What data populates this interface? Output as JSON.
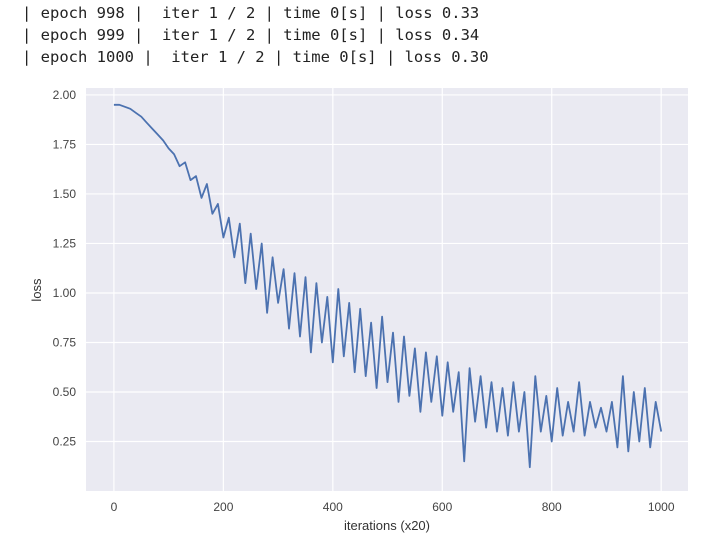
{
  "log_lines": [
    "| epoch 998 |  iter 1 / 2 | time 0[s] | loss 0.33",
    "| epoch 999 |  iter 1 / 2 | time 0[s] | loss 0.34",
    "| epoch 1000 |  iter 1 / 2 | time 0[s] | loss 0.30"
  ],
  "chart_data": {
    "type": "line",
    "title": "",
    "xlabel": "iterations (x20)",
    "ylabel": "loss",
    "xlim": [
      -51,
      1049
    ],
    "ylim": [
      0.0,
      2.035
    ],
    "xticks": [
      0,
      200,
      400,
      600,
      800,
      1000
    ],
    "xtick_labels": [
      "0",
      "200",
      "400",
      "600",
      "800",
      "1000"
    ],
    "yticks": [
      0.25,
      0.5,
      0.75,
      1.0,
      1.25,
      1.5,
      1.75,
      2.0
    ],
    "ytick_labels": [
      "0.25",
      "0.50",
      "0.75",
      "1.00",
      "1.25",
      "1.50",
      "1.75",
      "2.00"
    ],
    "grid": true,
    "background": "#eaeaf2",
    "line_color": "#4c72b0",
    "series": [
      {
        "x": [
          0,
          10,
          20,
          30,
          40,
          50,
          60,
          70,
          80,
          90,
          100,
          110,
          120,
          130,
          140,
          150,
          160,
          170,
          180,
          190,
          200,
          210,
          220,
          230,
          240,
          250,
          260,
          270,
          280,
          290,
          300,
          310,
          320,
          330,
          340,
          350,
          360,
          370,
          380,
          390,
          400,
          410,
          420,
          430,
          440,
          450,
          460,
          470,
          480,
          490,
          500,
          510,
          520,
          530,
          540,
          550,
          560,
          570,
          580,
          590,
          600,
          610,
          620,
          630,
          640,
          650,
          660,
          670,
          680,
          690,
          700,
          710,
          720,
          730,
          740,
          750,
          760,
          770,
          780,
          790,
          800,
          810,
          820,
          830,
          840,
          850,
          860,
          870,
          880,
          890,
          900,
          910,
          920,
          930,
          940,
          950,
          960,
          970,
          980,
          990,
          1000
        ],
        "y": [
          1.95,
          1.95,
          1.94,
          1.93,
          1.91,
          1.89,
          1.86,
          1.83,
          1.8,
          1.77,
          1.73,
          1.7,
          1.64,
          1.66,
          1.57,
          1.59,
          1.48,
          1.55,
          1.4,
          1.45,
          1.28,
          1.38,
          1.18,
          1.35,
          1.05,
          1.3,
          1.02,
          1.25,
          0.9,
          1.18,
          0.95,
          1.12,
          0.82,
          1.1,
          0.78,
          1.08,
          0.7,
          1.05,
          0.75,
          0.98,
          0.65,
          1.02,
          0.68,
          0.95,
          0.6,
          0.92,
          0.58,
          0.85,
          0.52,
          0.88,
          0.55,
          0.8,
          0.45,
          0.78,
          0.48,
          0.72,
          0.4,
          0.7,
          0.45,
          0.68,
          0.38,
          0.65,
          0.4,
          0.6,
          0.15,
          0.62,
          0.35,
          0.58,
          0.32,
          0.55,
          0.3,
          0.52,
          0.28,
          0.55,
          0.3,
          0.5,
          0.12,
          0.58,
          0.3,
          0.48,
          0.25,
          0.52,
          0.28,
          0.45,
          0.3,
          0.55,
          0.28,
          0.45,
          0.32,
          0.42,
          0.3,
          0.45,
          0.22,
          0.58,
          0.2,
          0.5,
          0.25,
          0.52,
          0.22,
          0.45,
          0.3
        ]
      }
    ]
  }
}
